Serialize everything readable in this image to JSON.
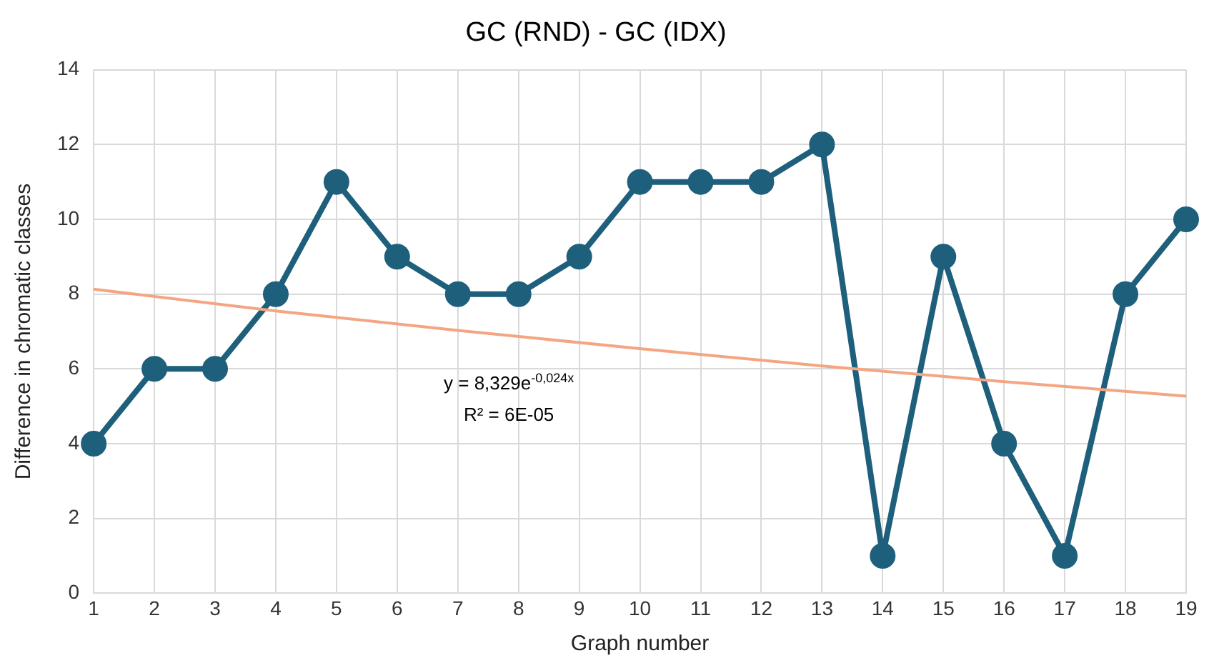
{
  "chart_data": {
    "type": "line",
    "title": "GC (RND) - GC (IDX)",
    "xlabel": "Graph number",
    "ylabel": "Difference in chromatic classes",
    "x": [
      1,
      2,
      3,
      4,
      5,
      6,
      7,
      8,
      9,
      10,
      11,
      12,
      13,
      14,
      15,
      16,
      17,
      18,
      19
    ],
    "series": [
      {
        "color": "#1e5f7c",
        "marker": "circle",
        "values": [
          4,
          6,
          6,
          8,
          11,
          9,
          8,
          8,
          9,
          11,
          11,
          11,
          12,
          1,
          9,
          4,
          1,
          8,
          10
        ]
      },
      {
        "type": "line",
        "color": "#f4a582",
        "marker": "none",
        "x": [
          1,
          4,
          7,
          10,
          13,
          16,
          19
        ],
        "values": [
          8.13,
          7.55,
          7.03,
          6.54,
          6.08,
          5.66,
          5.27
        ]
      }
    ],
    "annotations": [
      "y = 8,329e$^{-0,024x}$",
      "R² = 6E-05"
    ],
    "xlim": [
      1,
      19
    ],
    "xticks": [
      1,
      2,
      3,
      4,
      5,
      6,
      7,
      8,
      9,
      10,
      11,
      12,
      13,
      14,
      15,
      16,
      17,
      18,
      19
    ],
    "ylim": [
      0,
      14
    ],
    "yticks": [
      0,
      2,
      4,
      6,
      8,
      10,
      12,
      14
    ],
    "grid": true,
    "legend": false
  }
}
